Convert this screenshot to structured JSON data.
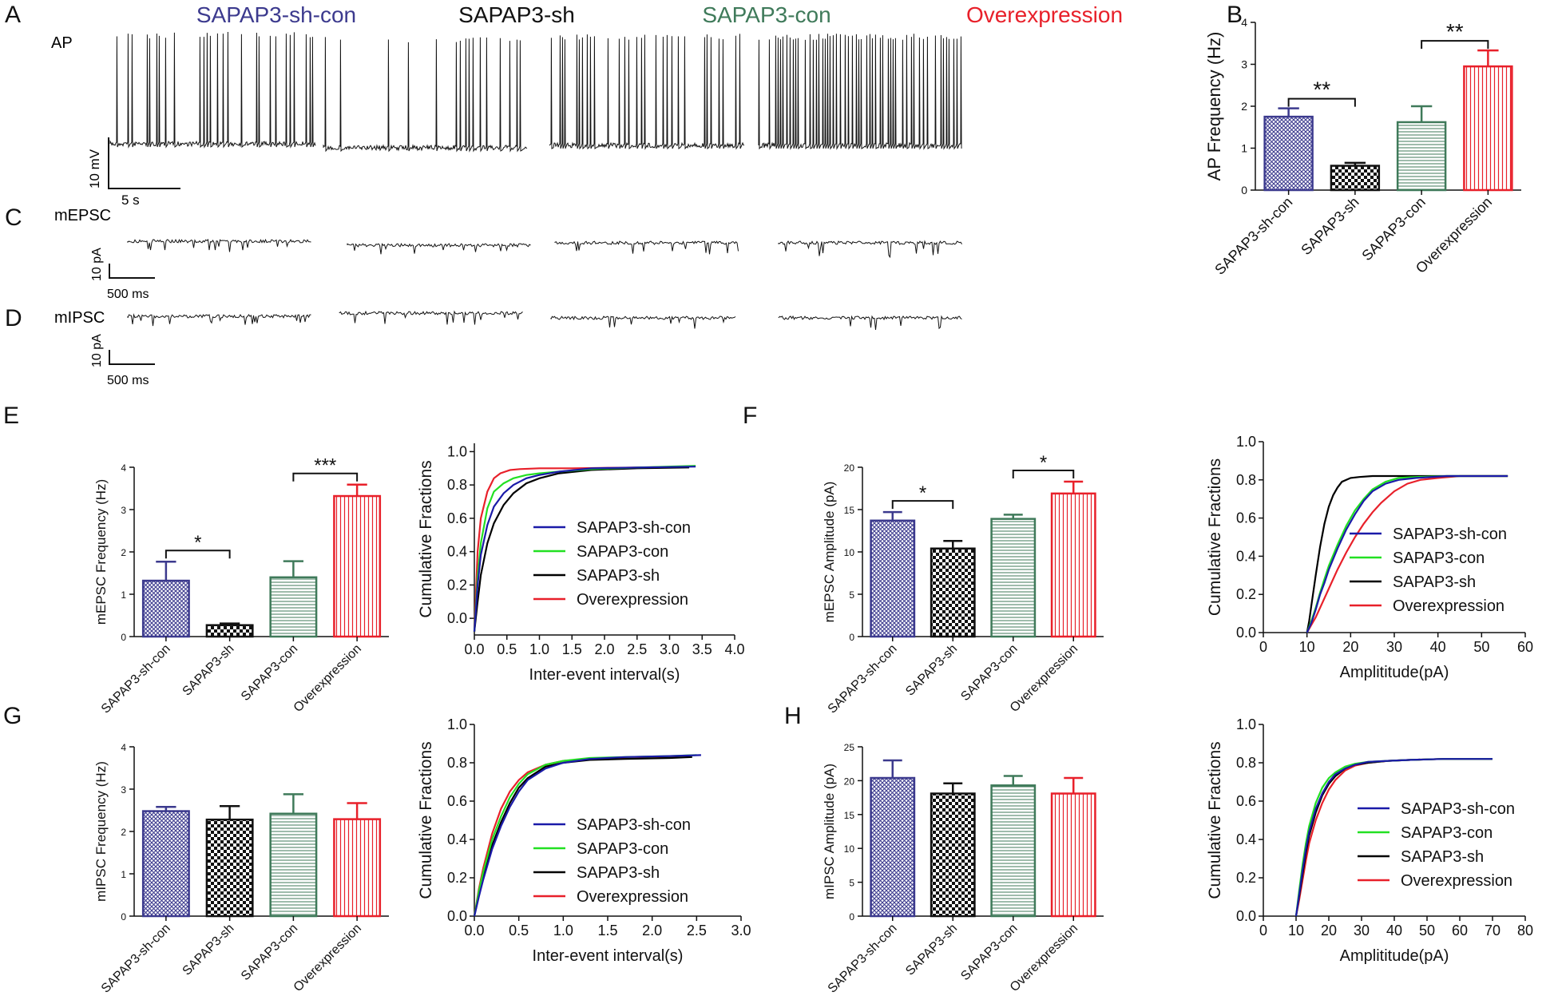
{
  "colors": {
    "sh_con": "#3c3a8e",
    "sh": "#111111",
    "con": "#3f7a5a",
    "over": "#e8202a",
    "cdf_sh_con": "#1a1aa8",
    "cdf_con": "#22e022",
    "cdf_sh": "#000000",
    "cdf_over": "#e8202a"
  },
  "panel_letters": {
    "A": "A",
    "B": "B",
    "C": "C",
    "D": "D",
    "E": "E",
    "F": "F",
    "G": "G",
    "H": "H"
  },
  "traces": {
    "group_titles": [
      "SAPAP3-sh-con",
      "SAPAP3-sh",
      "SAPAP3-con",
      "Overexpression"
    ],
    "ap_label": "AP",
    "mepsc_label": "mEPSC",
    "mipsc_label": "mIPSC",
    "ap_scale_v": "10 mV",
    "ap_scale_t": "5 s",
    "mepsc_scale_v": "10 pA",
    "mepsc_scale_t": "500 ms",
    "mipsc_scale_v": "10 pA",
    "mipsc_scale_t": "500 ms"
  },
  "chart_data": [
    {
      "id": "B",
      "type": "bar",
      "categories": [
        "SAPAP3-sh-con",
        "SAPAP3-sh",
        "SAPAP3-con",
        "Overexpression"
      ],
      "values": [
        1.75,
        0.58,
        1.62,
        2.95
      ],
      "errors": [
        0.2,
        0.07,
        0.38,
        0.38
      ],
      "ylabel": "AP Frequency (Hz)",
      "ylim": [
        0,
        4
      ],
      "yticks": [
        0,
        1,
        2,
        3,
        4
      ],
      "significance": [
        {
          "from": 0,
          "to": 1,
          "label": "**"
        },
        {
          "from": 2,
          "to": 3,
          "label": "**"
        }
      ]
    },
    {
      "id": "E1",
      "type": "bar",
      "categories": [
        "SAPAP3-sh-con",
        "SAPAP3-sh",
        "SAPAP3-con",
        "Overexpression"
      ],
      "values": [
        1.32,
        0.27,
        1.4,
        3.32
      ],
      "errors": [
        0.45,
        0.04,
        0.38,
        0.27
      ],
      "ylabel": "mEPSC Frequency (Hz)",
      "ylim": [
        0,
        4
      ],
      "yticks": [
        0,
        1,
        2,
        3,
        4
      ],
      "significance": [
        {
          "from": 0,
          "to": 1,
          "label": "*"
        },
        {
          "from": 2,
          "to": 3,
          "label": "***"
        }
      ]
    },
    {
      "id": "E2",
      "type": "line",
      "title": "",
      "xlabel": "Inter-event interval(s)",
      "ylabel": "Cumulative Fractions",
      "xlim": [
        0,
        4
      ],
      "ylim": [
        -0.1,
        1.05
      ],
      "xticks": [
        "0.0",
        "0.5",
        "1.0",
        "1.5",
        "2.0",
        "2.5",
        "3.0",
        "3.5",
        "4.0"
      ],
      "yticks": [
        "0.0",
        "0.2",
        "0.4",
        "0.6",
        "0.8",
        "1.0"
      ],
      "series": [
        {
          "name": "SAPAP3-sh-con",
          "x": [
            0,
            0.05,
            0.1,
            0.2,
            0.3,
            0.45,
            0.6,
            0.8,
            1.0,
            1.3,
            1.8,
            2.5,
            3.4
          ],
          "y": [
            -0.08,
            0.2,
            0.38,
            0.56,
            0.67,
            0.75,
            0.8,
            0.84,
            0.86,
            0.88,
            0.9,
            0.905,
            0.91
          ]
        },
        {
          "name": "SAPAP3-con",
          "x": [
            0,
            0.05,
            0.1,
            0.2,
            0.3,
            0.45,
            0.6,
            0.8,
            1.0,
            1.3,
            1.8,
            2.5,
            3.4
          ],
          "y": [
            -0.08,
            0.25,
            0.45,
            0.66,
            0.76,
            0.81,
            0.84,
            0.86,
            0.87,
            0.88,
            0.895,
            0.905,
            0.915
          ]
        },
        {
          "name": "SAPAP3-sh",
          "x": [
            0,
            0.05,
            0.1,
            0.2,
            0.3,
            0.45,
            0.6,
            0.8,
            1.0,
            1.3,
            1.8,
            2.5,
            3.3
          ],
          "y": [
            -0.08,
            0.1,
            0.26,
            0.45,
            0.57,
            0.68,
            0.75,
            0.81,
            0.84,
            0.87,
            0.89,
            0.9,
            0.905
          ]
        },
        {
          "name": "Overexpression",
          "x": [
            0,
            0.05,
            0.1,
            0.2,
            0.3,
            0.4,
            0.55,
            0.7,
            1.0,
            1.5,
            2.5,
            3.3
          ],
          "y": [
            -0.08,
            0.4,
            0.6,
            0.76,
            0.84,
            0.87,
            0.89,
            0.895,
            0.9,
            0.9,
            0.905,
            0.91
          ]
        }
      ]
    },
    {
      "id": "F1",
      "type": "bar",
      "categories": [
        "SAPAP3-sh-con",
        "SAPAP3-sh",
        "SAPAP3-con",
        "Overexpression"
      ],
      "values": [
        13.7,
        10.4,
        13.9,
        16.9
      ],
      "errors": [
        1.0,
        0.9,
        0.5,
        1.4
      ],
      "ylabel": "mEPSC Amplitude (pA)",
      "ylim": [
        0,
        20
      ],
      "yticks": [
        0,
        5,
        10,
        15,
        20
      ],
      "significance": [
        {
          "from": 0,
          "to": 1,
          "label": "*"
        },
        {
          "from": 2,
          "to": 3,
          "label": "*"
        }
      ]
    },
    {
      "id": "F2",
      "type": "line",
      "xlabel": "Amplititude(pA)",
      "ylabel": "Cumulative Fractions",
      "xlim": [
        0,
        60
      ],
      "ylim": [
        0,
        1.0
      ],
      "xticks": [
        "0",
        "10",
        "20",
        "30",
        "40",
        "50",
        "60"
      ],
      "yticks": [
        "0.0",
        "0.2",
        "0.4",
        "0.6",
        "0.8",
        "1.0"
      ],
      "series": [
        {
          "name": "SAPAP3-sh-con",
          "x": [
            10,
            11,
            12,
            13,
            14,
            15,
            17,
            19,
            21,
            23,
            25,
            28,
            31,
            35,
            42,
            56
          ],
          "y": [
            0,
            0.05,
            0.12,
            0.2,
            0.26,
            0.33,
            0.44,
            0.54,
            0.62,
            0.69,
            0.74,
            0.78,
            0.8,
            0.81,
            0.82,
            0.82
          ]
        },
        {
          "name": "SAPAP3-con",
          "x": [
            10,
            11,
            12,
            13,
            14,
            15,
            17,
            19,
            21,
            23,
            25,
            28,
            31,
            35,
            42,
            56
          ],
          "y": [
            0,
            0.06,
            0.13,
            0.21,
            0.28,
            0.35,
            0.46,
            0.56,
            0.64,
            0.7,
            0.75,
            0.79,
            0.81,
            0.815,
            0.82,
            0.82
          ]
        },
        {
          "name": "SAPAP3-sh",
          "x": [
            10,
            10.5,
            11,
            12,
            13,
            14,
            15,
            16,
            17,
            18,
            20,
            22,
            25,
            30,
            40,
            56
          ],
          "y": [
            0,
            0.06,
            0.14,
            0.3,
            0.45,
            0.57,
            0.66,
            0.72,
            0.76,
            0.79,
            0.81,
            0.815,
            0.82,
            0.82,
            0.82,
            0.82
          ]
        },
        {
          "name": "Overexpression",
          "x": [
            10,
            11,
            12,
            13,
            15,
            17,
            19,
            21,
            23,
            25,
            27,
            30,
            33,
            36,
            40,
            45,
            56
          ],
          "y": [
            0,
            0.04,
            0.08,
            0.13,
            0.23,
            0.33,
            0.42,
            0.5,
            0.57,
            0.63,
            0.68,
            0.74,
            0.78,
            0.8,
            0.81,
            0.82,
            0.82
          ]
        }
      ]
    },
    {
      "id": "G1",
      "type": "bar",
      "categories": [
        "SAPAP3-sh-con",
        "SAPAP3-sh",
        "SAPAP3-con",
        "Overexpression"
      ],
      "values": [
        2.48,
        2.28,
        2.42,
        2.29
      ],
      "errors": [
        0.1,
        0.32,
        0.46,
        0.38
      ],
      "ylabel": "mIPSC Frequency (Hz)",
      "ylim": [
        0,
        4
      ],
      "yticks": [
        0,
        1,
        2,
        3,
        4
      ],
      "significance": []
    },
    {
      "id": "G2",
      "type": "line",
      "xlabel": "Inter-event interval(s)",
      "ylabel": "Cumulative Fractions",
      "xlim": [
        0,
        3.0
      ],
      "ylim": [
        0,
        1.0
      ],
      "xticks": [
        "0.0",
        "0.5",
        "1.0",
        "1.5",
        "2.0",
        "2.5",
        "3.0"
      ],
      "yticks": [
        "0.0",
        "0.2",
        "0.4",
        "0.6",
        "0.8",
        "1.0"
      ],
      "series": [
        {
          "name": "SAPAP3-sh-con",
          "x": [
            0,
            0.05,
            0.1,
            0.2,
            0.3,
            0.4,
            0.5,
            0.6,
            0.8,
            1.0,
            1.3,
            1.7,
            2.2,
            2.55
          ],
          "y": [
            0,
            0.1,
            0.19,
            0.35,
            0.47,
            0.57,
            0.65,
            0.71,
            0.77,
            0.8,
            0.82,
            0.83,
            0.835,
            0.84
          ]
        },
        {
          "name": "SAPAP3-con",
          "x": [
            0,
            0.05,
            0.1,
            0.2,
            0.3,
            0.4,
            0.5,
            0.6,
            0.8,
            1.0,
            1.3,
            1.7,
            2.2,
            2.5
          ],
          "y": [
            0,
            0.13,
            0.23,
            0.4,
            0.52,
            0.62,
            0.69,
            0.74,
            0.79,
            0.81,
            0.825,
            0.83,
            0.835,
            0.84
          ]
        },
        {
          "name": "SAPAP3-sh",
          "x": [
            0,
            0.05,
            0.1,
            0.2,
            0.3,
            0.4,
            0.5,
            0.6,
            0.8,
            1.0,
            1.3,
            1.7,
            2.2,
            2.45
          ],
          "y": [
            0,
            0.11,
            0.2,
            0.37,
            0.49,
            0.59,
            0.67,
            0.72,
            0.78,
            0.8,
            0.815,
            0.82,
            0.825,
            0.83
          ]
        },
        {
          "name": "Overexpression",
          "x": [
            0,
            0.05,
            0.1,
            0.2,
            0.3,
            0.4,
            0.5,
            0.6,
            0.8,
            1.0,
            1.3,
            1.7,
            2.2,
            2.4
          ],
          "y": [
            0,
            0.14,
            0.25,
            0.43,
            0.56,
            0.65,
            0.71,
            0.75,
            0.79,
            0.81,
            0.82,
            0.825,
            0.83,
            0.83
          ]
        }
      ]
    },
    {
      "id": "H1",
      "type": "bar",
      "categories": [
        "SAPAP3-sh-con",
        "SAPAP3-sh",
        "SAPAP3-con",
        "Overexpression"
      ],
      "values": [
        20.4,
        18.1,
        19.3,
        18.1
      ],
      "errors": [
        2.6,
        1.5,
        1.4,
        2.3
      ],
      "ylabel": "mIPSC Amplitude (pA)",
      "ylim": [
        0,
        25
      ],
      "yticks": [
        0,
        5,
        10,
        15,
        20,
        25
      ],
      "significance": []
    },
    {
      "id": "H2",
      "type": "line",
      "xlabel": "Amplititude(pA)",
      "ylabel": "Cumulative Fractions",
      "xlim": [
        0,
        80
      ],
      "ylim": [
        0,
        1.0
      ],
      "xticks": [
        "0",
        "10",
        "20",
        "30",
        "40",
        "50",
        "60",
        "70",
        "80"
      ],
      "yticks": [
        "0.0",
        "0.2",
        "0.4",
        "0.6",
        "0.8",
        "1.0"
      ],
      "series": [
        {
          "name": "SAPAP3-sh-con",
          "x": [
            10,
            11,
            12,
            13,
            14,
            16,
            18,
            20,
            22,
            25,
            28,
            32,
            38,
            45,
            55,
            70
          ],
          "y": [
            0,
            0.12,
            0.24,
            0.35,
            0.44,
            0.56,
            0.64,
            0.7,
            0.74,
            0.77,
            0.79,
            0.805,
            0.81,
            0.815,
            0.82,
            0.82
          ]
        },
        {
          "name": "SAPAP3-con",
          "x": [
            10,
            11,
            12,
            13,
            14,
            16,
            18,
            20,
            22,
            25,
            28,
            32,
            38,
            45,
            55,
            70
          ],
          "y": [
            0,
            0.14,
            0.27,
            0.38,
            0.47,
            0.59,
            0.67,
            0.72,
            0.75,
            0.78,
            0.795,
            0.805,
            0.81,
            0.815,
            0.82,
            0.82
          ]
        },
        {
          "name": "SAPAP3-sh",
          "x": [
            10,
            11,
            12,
            13,
            14,
            16,
            18,
            20,
            22,
            25,
            28,
            32,
            38,
            45,
            55,
            70
          ],
          "y": [
            0,
            0.11,
            0.22,
            0.33,
            0.42,
            0.54,
            0.63,
            0.69,
            0.73,
            0.77,
            0.79,
            0.8,
            0.81,
            0.815,
            0.82,
            0.82
          ]
        },
        {
          "name": "Overexpression",
          "x": [
            10,
            11,
            12,
            13,
            14,
            16,
            18,
            20,
            22,
            25,
            28,
            32,
            38,
            45,
            55,
            70
          ],
          "y": [
            0,
            0.09,
            0.19,
            0.29,
            0.38,
            0.5,
            0.59,
            0.66,
            0.71,
            0.76,
            0.785,
            0.8,
            0.81,
            0.815,
            0.82,
            0.82
          ]
        }
      ]
    }
  ]
}
